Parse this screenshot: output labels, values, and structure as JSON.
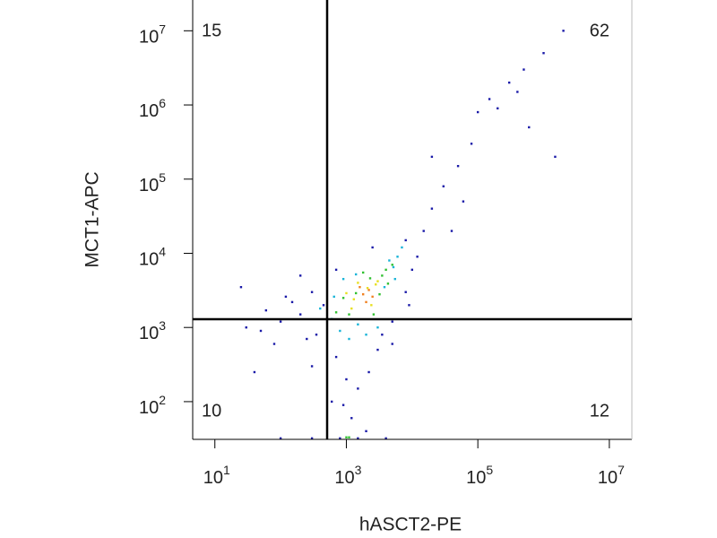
{
  "chart_data": {
    "type": "scatter",
    "x_label": "hASCT2-PE",
    "y_label": "MCT1-APC",
    "log_x": true,
    "log_y": true,
    "xlim": [
      4.6,
      22000000
    ],
    "ylim": [
      31,
      26000000
    ],
    "xticks": [
      {
        "value": 10,
        "label": "10^1"
      },
      {
        "value": 1000,
        "label": "10^3"
      },
      {
        "value": 100000,
        "label": "10^5"
      },
      {
        "value": 10000000,
        "label": "10^7"
      }
    ],
    "yticks": [
      {
        "value": 100,
        "label": "10^2"
      },
      {
        "value": 1000,
        "label": "10^3"
      },
      {
        "value": 10000,
        "label": "10^4"
      },
      {
        "value": 100000,
        "label": "10^5"
      },
      {
        "value": 1000000,
        "label": "10^6"
      },
      {
        "value": 10000000,
        "label": "10^7"
      }
    ],
    "gates": {
      "x": 510,
      "y": 1290
    },
    "quadrant_percentages": [
      15,
      62,
      10,
      12
    ],
    "series": [
      {
        "color": "#1a1aa8",
        "x": [
          200,
          100,
          50,
          300,
          150,
          80,
          30,
          700,
          1000,
          1500,
          900,
          1200,
          3000,
          5000,
          8000,
          10000,
          15000,
          20000,
          30000,
          50000,
          80000,
          100000,
          150000,
          200000,
          300000,
          400000,
          500000,
          1000000,
          2000000,
          600000,
          1500000,
          40000,
          20000,
          60000,
          300,
          200,
          2500,
          8000,
          12000,
          25,
          40,
          600,
          2000,
          800,
          300,
          100,
          1500,
          4000,
          250,
          120,
          60,
          450,
          2200,
          5000,
          3500,
          9000,
          700,
          350
        ],
        "y": [
          1500,
          1200,
          900,
          3000,
          2200,
          600,
          1000,
          400,
          200,
          150,
          90,
          60,
          500,
          1200,
          3000,
          6000,
          20000,
          40000,
          80000,
          150000,
          300000,
          800000,
          1200000,
          900000,
          2000000,
          1500000,
          3000000,
          5000000,
          10000000,
          500000,
          200000,
          20000,
          200000,
          50000,
          300,
          5000,
          12000,
          15000,
          9000,
          3500,
          250,
          100,
          40,
          32,
          32,
          32,
          32,
          32,
          700,
          2600,
          1700,
          2000,
          250,
          600,
          800,
          2000,
          6000,
          800
        ]
      },
      {
        "color": "#19b4d8",
        "x": [
          600,
          800,
          4500,
          6000,
          1500,
          3800,
          900,
          5500,
          400,
          2000,
          7000,
          1100,
          650,
          3000,
          5200,
          1400
        ],
        "y": [
          1300,
          900,
          8000,
          9000,
          1100,
          3500,
          4500,
          4500,
          1800,
          800,
          12000,
          700,
          2600,
          1000,
          6500,
          5200
        ]
      },
      {
        "color": "#30c030",
        "x": [
          1100,
          3500,
          4000,
          900,
          2600,
          3200,
          1800,
          700,
          5000,
          1000,
          1100,
          2300,
          1400,
          4300
        ],
        "y": [
          1500,
          5000,
          6000,
          2500,
          1500,
          2800,
          5500,
          1600,
          7000,
          33,
          33,
          4600,
          2900,
          3900
        ]
      },
      {
        "color": "#e8e020",
        "x": [
          1300,
          2800,
          3000,
          1500,
          2400,
          1200,
          1000,
          2100
        ],
        "y": [
          2400,
          3800,
          4200,
          4000,
          2000,
          1800,
          2900,
          3400
        ]
      },
      {
        "color": "#f08020",
        "x": [
          1800,
          2200,
          2500,
          2000,
          1600
        ],
        "y": [
          2800,
          3200,
          2600,
          2200,
          3500
        ]
      }
    ]
  }
}
